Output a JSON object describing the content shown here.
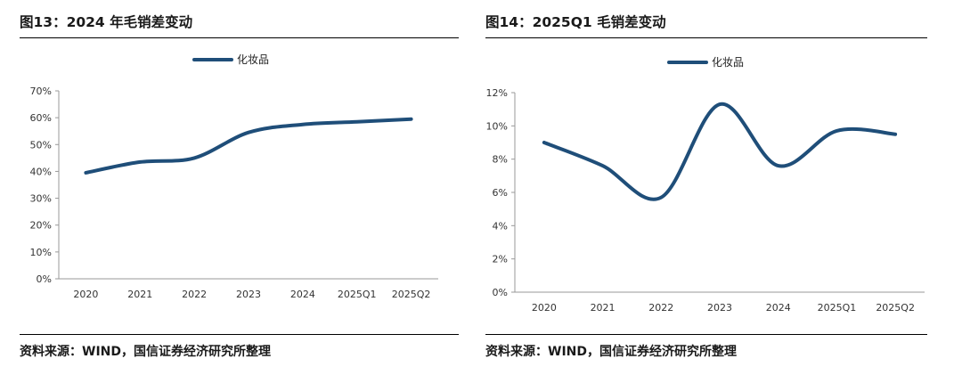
{
  "left": {
    "title": "图13：2024 年毛销差变动",
    "source": "资料来源：WIND，国信证券经济研究所整理"
  },
  "right": {
    "title": "图14：2025Q1 毛销差变动",
    "source": "资料来源：WIND，国信证券经济研究所整理"
  },
  "colors": {
    "series": "#1f4e79",
    "axis": "#999999"
  },
  "chart_data": [
    {
      "type": "line",
      "title": "",
      "categories": [
        "2020",
        "2021",
        "2022",
        "2023",
        "2024",
        "2025Q1",
        "2025Q2"
      ],
      "series": [
        {
          "name": "化妆品",
          "values": [
            39.5,
            43.5,
            45,
            54.5,
            57.5,
            58.5,
            59.5
          ]
        }
      ],
      "ylim": [
        0,
        70
      ],
      "yticks": [
        "0%",
        "10%",
        "20%",
        "30%",
        "40%",
        "50%",
        "60%",
        "70%"
      ],
      "legend": "top-center",
      "grid": false
    },
    {
      "type": "line",
      "title": "",
      "categories": [
        "2020",
        "2021",
        "2022",
        "2023",
        "2024",
        "2025Q1",
        "2025Q2"
      ],
      "series": [
        {
          "name": "化妆品",
          "values": [
            9.0,
            7.6,
            5.7,
            11.3,
            7.6,
            9.7,
            9.5
          ]
        }
      ],
      "ylim": [
        0,
        12
      ],
      "yticks": [
        "0%",
        "2%",
        "4%",
        "6%",
        "8%",
        "10%",
        "12%"
      ],
      "legend": "top-center",
      "grid": false
    }
  ]
}
